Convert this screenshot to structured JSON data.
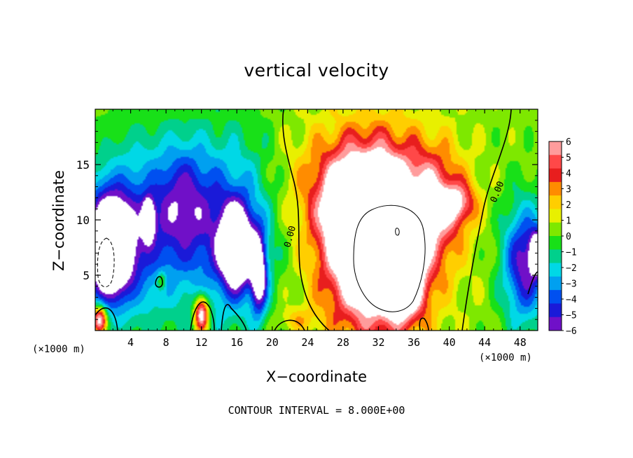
{
  "chart_data": {
    "type": "heatmap",
    "title": "vertical velocity",
    "xlabel": "X−coordinate",
    "ylabel": "Z−coordinate",
    "x_unit_left": "(×1000 m)",
    "x_unit_right": "(×1000 m)",
    "xlim": [
      0,
      50
    ],
    "ylim": [
      0,
      20
    ],
    "x_ticks": [
      4,
      8,
      12,
      16,
      20,
      24,
      28,
      32,
      36,
      40,
      44,
      48
    ],
    "y_ticks": [
      5,
      10,
      15
    ],
    "x_tick_labels": [
      "4",
      "8",
      "12",
      "16",
      "20",
      "24",
      "28",
      "32",
      "36",
      "40",
      "44",
      "48"
    ],
    "y_tick_labels": [
      "5",
      "10",
      "15"
    ],
    "colorbar": {
      "min": -6,
      "max": 6,
      "labels": [
        "6",
        "5",
        "4",
        "3",
        "2",
        "1",
        "0",
        "−1",
        "−2",
        "−3",
        "−4",
        "−5",
        "−6"
      ],
      "colors": [
        "#ff9c9c",
        "#ff4848",
        "#e81e1e",
        "#ff8c00",
        "#ffce00",
        "#e8f000",
        "#7ee800",
        "#18e018",
        "#00d08c",
        "#00d8e6",
        "#00a0f0",
        "#0050f0",
        "#1a1ad8",
        "#7010c8"
      ]
    },
    "contour_labels": [
      "0.00",
      "0.00"
    ],
    "footer": "CONTOUR INTERVAL =  8.000E+00",
    "blobs": [
      {
        "x": 31.5,
        "z": 8,
        "rx": 4.8,
        "rz": 6.5,
        "v": 12
      },
      {
        "x": 35,
        "z": 4,
        "rx": 2.2,
        "rz": 3.0,
        "v": 6
      },
      {
        "x": 28.5,
        "z": 11,
        "rx": 2.2,
        "rz": 3.0,
        "v": 4
      },
      {
        "x": 38.5,
        "z": 11,
        "rx": 3.0,
        "rz": 5.0,
        "v": 4
      },
      {
        "x": 41,
        "z": 11.5,
        "rx": 2.0,
        "rz": 1.8,
        "v": 4
      },
      {
        "x": 30.5,
        "z": 13,
        "rx": 7.5,
        "rz": 5.0,
        "v": 4
      },
      {
        "x": 31,
        "z": 6,
        "rx": 8.5,
        "rz": 12.0,
        "v": 1.5
      },
      {
        "x": 12,
        "z": 1.5,
        "rx": 0.8,
        "rz": 1.6,
        "v": 8
      },
      {
        "x": 0.5,
        "z": 1.0,
        "rx": 0.8,
        "rz": 1.2,
        "v": 8
      },
      {
        "x": 1.5,
        "z": 7.5,
        "rx": 2.5,
        "rz": 4.5,
        "v": -11
      },
      {
        "x": 6,
        "z": 10,
        "rx": 0.6,
        "rz": 1.6,
        "v": -9
      },
      {
        "x": 16,
        "z": 7.5,
        "rx": 1.8,
        "rz": 3.5,
        "v": -9
      },
      {
        "x": 18.5,
        "z": 5,
        "rx": 0.9,
        "rz": 3.5,
        "v": -7
      },
      {
        "x": 5,
        "z": 9,
        "rx": 5.5,
        "rz": 8.0,
        "v": -4.5
      },
      {
        "x": 15,
        "z": 9,
        "rx": 5.5,
        "rz": 8.5,
        "v": -4.5
      },
      {
        "x": 10,
        "z": 12,
        "rx": 3.0,
        "rz": 5.0,
        "v": -3
      },
      {
        "x": 48.5,
        "z": 6,
        "rx": 2.5,
        "rz": 5.5,
        "v": -6
      },
      {
        "x": 50,
        "z": 7,
        "rx": 0.8,
        "rz": 1.8,
        "v": -8
      },
      {
        "x": 7.5,
        "z": 4.5,
        "rx": 0.5,
        "rz": 0.8,
        "v": 3
      },
      {
        "x": 22.5,
        "z": 1.0,
        "rx": 2.0,
        "rz": 1.0,
        "v": 1.5
      }
    ]
  }
}
